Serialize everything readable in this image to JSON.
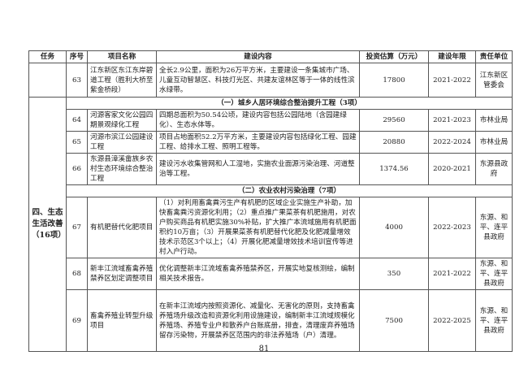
{
  "headers": [
    "任务",
    "序号",
    "项目名称",
    "建设内容",
    "投资估算（万元）",
    "建设年限",
    "责任单位"
  ],
  "task": "四、生态生活改善（16项）",
  "section1": "（一）城乡人居环境综合整治提升工程（3项）",
  "section2": "（二）农业农村污染治理（7项）",
  "rows": [
    {
      "no": "63",
      "name": "江东新区东江东岸碧道工程（胜利大桥至紫金桥段）",
      "content": "全长2.9公里，面积为26万平方米，主要建设一条集城市广场、儿童互动智慧区、科技灯光区、共建友谊林区等于一体的线性滨水绿带。",
      "invest": "17800",
      "years": "2021-2022",
      "unit": "江东新区管委会"
    },
    {
      "no": "64",
      "name": "河源客家文化公园四期景观绿化工程",
      "content": "四期总面积为50.54公顷，建设内容包括公园陆地（含园建绿化）、生态水体等。",
      "invest": "29560",
      "years": "2021-2023",
      "unit": "市林业局"
    },
    {
      "no": "65",
      "name": "河源市滨江公园建设工程",
      "content": "项目占地面积52.2万平方米，主要建设内容包括绿化工程、园建工程、给排水工程、照明工程等。",
      "invest": "20880",
      "years": "2022-2024",
      "unit": "市林业局"
    },
    {
      "no": "66",
      "name": "东源县漳溪畲族乡农村生态环境综合整治工程",
      "content": "建设污水收集管网和人工湿地，实施农业面源污染治理、河道整治等工程。",
      "invest": "1374.56",
      "years": "2020-2021",
      "unit": "东源县政府"
    },
    {
      "no": "67",
      "name": "有机肥替代化肥项目",
      "content": "（1）对利用畜禽粪污生产有机肥的区域企业实施生产补助，加快畜禽粪污资源化利用；（2）重点推广果菜茶有机肥施用，对农户购买商品有机肥实施30%补贴，扩大推广本流域施用有机肥面积约10万亩；（3）开展果菜茶有机肥替代化肥及化肥减量增效技术示范区3个以上；（4）开展化肥减量增效技术培训宣传等进村入户行动。",
      "invest": "4000",
      "years": "2022-2023",
      "unit": "东源、和平、连平县政府"
    },
    {
      "no": "68",
      "name": "新丰江流域畜禽养殖禁养区划定调整项目",
      "content": "优化调整新丰江流域畜禽养殖禁养区，开展实地复核测绘，编制相关技术报告。",
      "invest": "350",
      "years": "2021-2022",
      "unit": "东源、和平、连平县政府"
    },
    {
      "no": "69",
      "name": "畜禽养殖业转型升级项目",
      "content": "在新丰江流域内按照资源化、减量化、无害化的原则，支持畜禽养殖场升级改造和资源化利用设施建设，编制新丰江流域规模化养殖场、养殖专业户和散养户台账底册，排查，清理废弃养殖场留存污染物，开展禁养区范围内的非法养殖场（户）清理。",
      "invest": "7500",
      "years": "2022-2025",
      "unit": "东源、和平、连平县政府"
    }
  ],
  "page_number": "81"
}
